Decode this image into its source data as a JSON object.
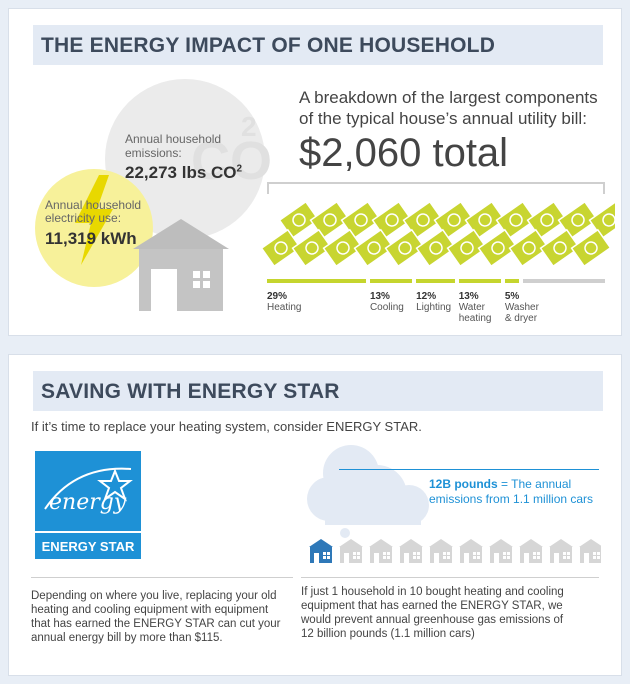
{
  "section1": {
    "title": "THE ENERGY IMPACT OF ONE HOUSEHOLD",
    "co2_large": "CO",
    "co2_large_sub": "2",
    "emissions_label_line1": "Annual household",
    "emissions_label_line2": "emissions:",
    "emissions_value": "22,273 lbs CO",
    "emissions_value_sup": "2",
    "electricity_label_line1": "Annual household",
    "electricity_label_line2": "electricity use:",
    "electricity_value": "11,319 kWh",
    "breakdown_line1": "A breakdown of the largest components",
    "breakdown_line2": "of the typical house’s annual utility bill:",
    "total": "$2,060 total",
    "categories": [
      {
        "pct": "29%",
        "line1": "Heating",
        "line2": "",
        "share": 29
      },
      {
        "pct": "13%",
        "line1": "Cooling",
        "line2": "",
        "share": 13
      },
      {
        "pct": "12%",
        "line1": "Lighting",
        "line2": "",
        "share": 12
      },
      {
        "pct": "13%",
        "line1": "Water",
        "line2": "heating",
        "share": 13
      },
      {
        "pct": "5%",
        "line1": "Washer",
        "line2": "& dryer",
        "share": 5
      }
    ],
    "colors": {
      "accent": "#c5d52e",
      "bill": "#c8d531",
      "grey": "#cfcfcf"
    }
  },
  "section2": {
    "title": "SAVING WITH ENERGY STAR",
    "intro": "If it’s time to replace your heating system, consider ENERGY STAR.",
    "logo_script": "energy",
    "logo_text": "ENERGY STAR",
    "cloud_bold": "12B pounds",
    "cloud_rest": " = The annual",
    "cloud_line2": "emissions from 1.1 million cars",
    "houses_highlighted": 1,
    "houses_total": 10,
    "left_para": [
      "Depending on where you live, replacing your old",
      "heating and cooling equipment with equipment",
      "that has earned the ENERGY STAR can cut your",
      "annual energy bill by more than $115."
    ],
    "right_para": [
      "If just 1 household in 10 bought heating and cooling",
      "equipment that has earned the ENERGY STAR, we",
      "would prevent annual greenhouse gas emissions of",
      "12 billion pounds (1.1 million cars)"
    ],
    "colors": {
      "blue": "#1e91d6",
      "house_grey": "#d6d6d6",
      "house_blue": "#2e78b8"
    }
  }
}
